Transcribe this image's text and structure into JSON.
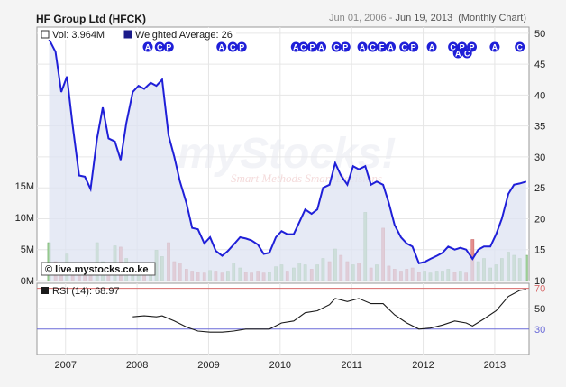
{
  "header": {
    "title": "HF Group Ltd (HFCK)",
    "date_start": "Jun 01, 2006",
    "date_sep": " - ",
    "date_end": "Jun 19, 2013",
    "chart_kind": "(Monthly Chart)"
  },
  "legend": {
    "vol_label": "Vol: 3.964M",
    "wavg_label": "Weighted Average: 26",
    "rsi_label": "RSI (14): 68.97"
  },
  "copyright": "© live.mystocks.co.ke",
  "watermark": {
    "main": "myStocks!",
    "sub": "Smart Methods Smart Decisions"
  },
  "colors": {
    "price_line": "#1f1fd8",
    "area_fill": "#dde3f2",
    "vol_up": "#9ccf94",
    "vol_down": "#e58d8d",
    "rsi_line": "#1a1a1a",
    "rsi_70": "#d86a6a",
    "rsi_30": "#6a6ad8",
    "marker_fill": "#1f1fd8"
  },
  "events": [
    {
      "x": 2008.15,
      "label": "A"
    },
    {
      "x": 2008.38,
      "label": "CP"
    },
    {
      "x": 2009.18,
      "label": "A"
    },
    {
      "x": 2009.4,
      "label": "CP"
    },
    {
      "x": 2010.22,
      "label": "A"
    },
    {
      "x": 2010.45,
      "label": "CPA"
    },
    {
      "x": 2010.85,
      "label": "CP"
    },
    {
      "x": 2011.15,
      "label": "A"
    },
    {
      "x": 2011.42,
      "label": "CFA"
    },
    {
      "x": 2011.8,
      "label": "CP"
    },
    {
      "x": 2012.12,
      "label": "A"
    },
    {
      "x": 2012.48,
      "label": "CP"
    },
    {
      "x": 2012.68,
      "label": "P"
    },
    {
      "x": 2013.0,
      "label": "A"
    },
    {
      "x": 2013.35,
      "label": "C"
    }
  ],
  "events_row2": [
    {
      "x": 2012.55,
      "label": "AC"
    }
  ],
  "chart_data": {
    "type": "line",
    "price_axis": {
      "ticks": [
        10,
        15,
        20,
        25,
        30,
        35,
        40,
        45,
        50
      ],
      "range": [
        10,
        51
      ]
    },
    "volume_axis": {
      "ticks": [
        "0M",
        "5M",
        "10M",
        "15M"
      ],
      "tick_values": [
        0,
        5,
        10,
        15
      ]
    },
    "rsi_axis": {
      "ticks": [
        30,
        50,
        70
      ],
      "levels": [
        30,
        70
      ]
    },
    "x_axis": {
      "ticks": [
        "2007",
        "2008",
        "2009",
        "2010",
        "2011",
        "2012",
        "2013"
      ],
      "tick_values": [
        2007,
        2008,
        2009,
        2010,
        2011,
        2012,
        2013
      ]
    },
    "price": [
      {
        "x": 2006.77,
        "y": 49.0
      },
      {
        "x": 2006.86,
        "y": 47.0
      },
      {
        "x": 2006.94,
        "y": 40.5
      },
      {
        "x": 2007.02,
        "y": 43.0
      },
      {
        "x": 2007.1,
        "y": 35.0
      },
      {
        "x": 2007.19,
        "y": 27.0
      },
      {
        "x": 2007.27,
        "y": 26.8
      },
      {
        "x": 2007.35,
        "y": 24.8
      },
      {
        "x": 2007.44,
        "y": 33.0
      },
      {
        "x": 2007.52,
        "y": 38.0
      },
      {
        "x": 2007.6,
        "y": 33.0
      },
      {
        "x": 2007.69,
        "y": 32.5
      },
      {
        "x": 2007.77,
        "y": 29.5
      },
      {
        "x": 2007.85,
        "y": 35.5
      },
      {
        "x": 2007.94,
        "y": 40.5
      },
      {
        "x": 2008.02,
        "y": 41.5
      },
      {
        "x": 2008.1,
        "y": 41.0
      },
      {
        "x": 2008.19,
        "y": 42.0
      },
      {
        "x": 2008.27,
        "y": 41.5
      },
      {
        "x": 2008.35,
        "y": 42.5
      },
      {
        "x": 2008.44,
        "y": 33.5
      },
      {
        "x": 2008.52,
        "y": 30.0
      },
      {
        "x": 2008.6,
        "y": 26.0
      },
      {
        "x": 2008.69,
        "y": 22.5
      },
      {
        "x": 2008.77,
        "y": 18.5
      },
      {
        "x": 2008.85,
        "y": 18.3
      },
      {
        "x": 2008.94,
        "y": 16.0
      },
      {
        "x": 2009.02,
        "y": 17.0
      },
      {
        "x": 2009.1,
        "y": 14.8
      },
      {
        "x": 2009.19,
        "y": 14.0
      },
      {
        "x": 2009.27,
        "y": 14.8
      },
      {
        "x": 2009.35,
        "y": 15.8
      },
      {
        "x": 2009.44,
        "y": 17.0
      },
      {
        "x": 2009.52,
        "y": 16.8
      },
      {
        "x": 2009.6,
        "y": 16.5
      },
      {
        "x": 2009.69,
        "y": 15.8
      },
      {
        "x": 2009.77,
        "y": 14.3
      },
      {
        "x": 2009.85,
        "y": 14.5
      },
      {
        "x": 2009.94,
        "y": 17.0
      },
      {
        "x": 2010.02,
        "y": 18.0
      },
      {
        "x": 2010.1,
        "y": 17.5
      },
      {
        "x": 2010.19,
        "y": 17.5
      },
      {
        "x": 2010.27,
        "y": 19.5
      },
      {
        "x": 2010.35,
        "y": 21.5
      },
      {
        "x": 2010.44,
        "y": 20.8
      },
      {
        "x": 2010.52,
        "y": 21.5
      },
      {
        "x": 2010.6,
        "y": 25.0
      },
      {
        "x": 2010.69,
        "y": 25.5
      },
      {
        "x": 2010.77,
        "y": 29.0
      },
      {
        "x": 2010.85,
        "y": 27.0
      },
      {
        "x": 2010.94,
        "y": 25.5
      },
      {
        "x": 2011.02,
        "y": 28.5
      },
      {
        "x": 2011.1,
        "y": 28.0
      },
      {
        "x": 2011.19,
        "y": 28.5
      },
      {
        "x": 2011.27,
        "y": 25.5
      },
      {
        "x": 2011.35,
        "y": 26.0
      },
      {
        "x": 2011.44,
        "y": 25.5
      },
      {
        "x": 2011.52,
        "y": 22.5
      },
      {
        "x": 2011.6,
        "y": 19.0
      },
      {
        "x": 2011.69,
        "y": 17.0
      },
      {
        "x": 2011.77,
        "y": 16.0
      },
      {
        "x": 2011.85,
        "y": 15.5
      },
      {
        "x": 2011.94,
        "y": 12.8
      },
      {
        "x": 2012.02,
        "y": 13.0
      },
      {
        "x": 2012.1,
        "y": 13.5
      },
      {
        "x": 2012.19,
        "y": 14.0
      },
      {
        "x": 2012.27,
        "y": 14.5
      },
      {
        "x": 2012.35,
        "y": 15.5
      },
      {
        "x": 2012.44,
        "y": 15.0
      },
      {
        "x": 2012.52,
        "y": 15.3
      },
      {
        "x": 2012.6,
        "y": 15.0
      },
      {
        "x": 2012.69,
        "y": 13.5
      },
      {
        "x": 2012.77,
        "y": 15.0
      },
      {
        "x": 2012.85,
        "y": 15.5
      },
      {
        "x": 2012.94,
        "y": 15.5
      },
      {
        "x": 2013.02,
        "y": 17.5
      },
      {
        "x": 2013.1,
        "y": 20.0
      },
      {
        "x": 2013.19,
        "y": 24.0
      },
      {
        "x": 2013.27,
        "y": 25.5
      },
      {
        "x": 2013.35,
        "y": 25.7
      },
      {
        "x": 2013.44,
        "y": 26.0
      }
    ],
    "volume": [
      {
        "x": 2006.77,
        "v": 6.0,
        "up": true
      },
      {
        "x": 2006.86,
        "v": 3.0,
        "up": false
      },
      {
        "x": 2006.94,
        "v": 1.5,
        "up": false
      },
      {
        "x": 2007.02,
        "v": 4.2,
        "up": true
      },
      {
        "x": 2007.1,
        "v": 1.8,
        "up": false
      },
      {
        "x": 2007.19,
        "v": 1.5,
        "up": false
      },
      {
        "x": 2007.27,
        "v": 1.0,
        "up": false
      },
      {
        "x": 2007.35,
        "v": 1.2,
        "up": false
      },
      {
        "x": 2007.44,
        "v": 6.0,
        "up": true
      },
      {
        "x": 2007.52,
        "v": 3.0,
        "up": true
      },
      {
        "x": 2007.6,
        "v": 1.5,
        "up": false
      },
      {
        "x": 2007.69,
        "v": 5.5,
        "up": true
      },
      {
        "x": 2007.77,
        "v": 5.3,
        "up": false
      },
      {
        "x": 2007.85,
        "v": 3.5,
        "up": true
      },
      {
        "x": 2007.94,
        "v": 2.0,
        "up": true
      },
      {
        "x": 2008.02,
        "v": 1.5,
        "up": true
      },
      {
        "x": 2008.1,
        "v": 1.3,
        "up": false
      },
      {
        "x": 2008.19,
        "v": 1.8,
        "up": true
      },
      {
        "x": 2008.27,
        "v": 4.8,
        "up": true
      },
      {
        "x": 2008.35,
        "v": 3.8,
        "up": true
      },
      {
        "x": 2008.44,
        "v": 6.0,
        "up": false
      },
      {
        "x": 2008.52,
        "v": 3.0,
        "up": false
      },
      {
        "x": 2008.6,
        "v": 2.8,
        "up": false
      },
      {
        "x": 2008.69,
        "v": 1.8,
        "up": false
      },
      {
        "x": 2008.77,
        "v": 1.5,
        "up": false
      },
      {
        "x": 2008.85,
        "v": 1.3,
        "up": false
      },
      {
        "x": 2008.94,
        "v": 1.2,
        "up": false
      },
      {
        "x": 2009.02,
        "v": 1.6,
        "up": true
      },
      {
        "x": 2009.1,
        "v": 1.5,
        "up": false
      },
      {
        "x": 2009.19,
        "v": 1.2,
        "up": false
      },
      {
        "x": 2009.27,
        "v": 1.5,
        "up": true
      },
      {
        "x": 2009.35,
        "v": 2.8,
        "up": true
      },
      {
        "x": 2009.44,
        "v": 2.0,
        "up": true
      },
      {
        "x": 2009.52,
        "v": 1.3,
        "up": false
      },
      {
        "x": 2009.6,
        "v": 1.2,
        "up": false
      },
      {
        "x": 2009.69,
        "v": 1.5,
        "up": false
      },
      {
        "x": 2009.77,
        "v": 1.2,
        "up": false
      },
      {
        "x": 2009.85,
        "v": 1.3,
        "up": true
      },
      {
        "x": 2009.94,
        "v": 2.2,
        "up": true
      },
      {
        "x": 2010.02,
        "v": 2.5,
        "up": true
      },
      {
        "x": 2010.1,
        "v": 1.5,
        "up": false
      },
      {
        "x": 2010.19,
        "v": 2.0,
        "up": true
      },
      {
        "x": 2010.27,
        "v": 2.8,
        "up": true
      },
      {
        "x": 2010.35,
        "v": 2.5,
        "up": true
      },
      {
        "x": 2010.44,
        "v": 1.8,
        "up": false
      },
      {
        "x": 2010.52,
        "v": 2.5,
        "up": true
      },
      {
        "x": 2010.6,
        "v": 3.5,
        "up": true
      },
      {
        "x": 2010.69,
        "v": 3.0,
        "up": false
      },
      {
        "x": 2010.77,
        "v": 5.0,
        "up": true
      },
      {
        "x": 2010.85,
        "v": 4.0,
        "up": false
      },
      {
        "x": 2010.94,
        "v": 3.0,
        "up": false
      },
      {
        "x": 2011.02,
        "v": 2.5,
        "up": true
      },
      {
        "x": 2011.1,
        "v": 2.8,
        "up": false
      },
      {
        "x": 2011.19,
        "v": 10.8,
        "up": true
      },
      {
        "x": 2011.27,
        "v": 2.0,
        "up": false
      },
      {
        "x": 2011.35,
        "v": 2.5,
        "up": true
      },
      {
        "x": 2011.44,
        "v": 8.3,
        "up": false
      },
      {
        "x": 2011.52,
        "v": 2.3,
        "up": false
      },
      {
        "x": 2011.6,
        "v": 1.8,
        "up": false
      },
      {
        "x": 2011.69,
        "v": 1.5,
        "up": false
      },
      {
        "x": 2011.77,
        "v": 1.8,
        "up": false
      },
      {
        "x": 2011.85,
        "v": 2.0,
        "up": false
      },
      {
        "x": 2011.94,
        "v": 1.3,
        "up": false
      },
      {
        "x": 2012.02,
        "v": 1.5,
        "up": true
      },
      {
        "x": 2012.1,
        "v": 1.2,
        "up": true
      },
      {
        "x": 2012.19,
        "v": 1.5,
        "up": true
      },
      {
        "x": 2012.27,
        "v": 1.5,
        "up": true
      },
      {
        "x": 2012.35,
        "v": 1.8,
        "up": true
      },
      {
        "x": 2012.44,
        "v": 1.3,
        "up": false
      },
      {
        "x": 2012.52,
        "v": 1.5,
        "up": true
      },
      {
        "x": 2012.6,
        "v": 1.2,
        "up": false
      },
      {
        "x": 2012.69,
        "v": 6.5,
        "up": false
      },
      {
        "x": 2012.77,
        "v": 3.0,
        "up": true
      },
      {
        "x": 2012.85,
        "v": 3.5,
        "up": true
      },
      {
        "x": 2012.94,
        "v": 2.0,
        "up": true
      },
      {
        "x": 2013.02,
        "v": 2.5,
        "up": true
      },
      {
        "x": 2013.1,
        "v": 3.5,
        "up": true
      },
      {
        "x": 2013.19,
        "v": 4.5,
        "up": true
      },
      {
        "x": 2013.27,
        "v": 4.0,
        "up": true
      },
      {
        "x": 2013.35,
        "v": 3.5,
        "up": true
      },
      {
        "x": 2013.44,
        "v": 4.0,
        "up": true
      }
    ],
    "rsi": [
      {
        "x": 2007.94,
        "y": 42
      },
      {
        "x": 2008.1,
        "y": 43
      },
      {
        "x": 2008.27,
        "y": 42
      },
      {
        "x": 2008.35,
        "y": 43
      },
      {
        "x": 2008.52,
        "y": 38
      },
      {
        "x": 2008.69,
        "y": 32
      },
      {
        "x": 2008.85,
        "y": 28
      },
      {
        "x": 2009.02,
        "y": 27
      },
      {
        "x": 2009.19,
        "y": 27
      },
      {
        "x": 2009.35,
        "y": 28
      },
      {
        "x": 2009.52,
        "y": 30
      },
      {
        "x": 2009.69,
        "y": 30
      },
      {
        "x": 2009.85,
        "y": 30
      },
      {
        "x": 2010.02,
        "y": 36
      },
      {
        "x": 2010.19,
        "y": 38
      },
      {
        "x": 2010.35,
        "y": 46
      },
      {
        "x": 2010.52,
        "y": 48
      },
      {
        "x": 2010.69,
        "y": 54
      },
      {
        "x": 2010.77,
        "y": 60
      },
      {
        "x": 2010.94,
        "y": 57
      },
      {
        "x": 2011.1,
        "y": 60
      },
      {
        "x": 2011.27,
        "y": 55
      },
      {
        "x": 2011.44,
        "y": 55
      },
      {
        "x": 2011.6,
        "y": 44
      },
      {
        "x": 2011.77,
        "y": 36
      },
      {
        "x": 2011.94,
        "y": 30
      },
      {
        "x": 2012.1,
        "y": 31
      },
      {
        "x": 2012.27,
        "y": 34
      },
      {
        "x": 2012.44,
        "y": 38
      },
      {
        "x": 2012.6,
        "y": 36
      },
      {
        "x": 2012.69,
        "y": 33
      },
      {
        "x": 2012.85,
        "y": 40
      },
      {
        "x": 2013.02,
        "y": 48
      },
      {
        "x": 2013.19,
        "y": 62
      },
      {
        "x": 2013.35,
        "y": 68
      },
      {
        "x": 2013.44,
        "y": 69
      }
    ]
  }
}
